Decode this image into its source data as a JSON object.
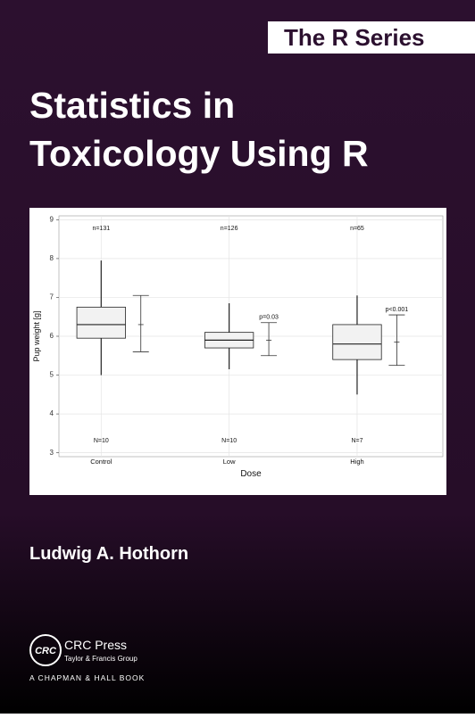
{
  "series_label": "The R Series",
  "title": [
    "Statistics in",
    "Toxicology Using R"
  ],
  "author": "Ludwig A. Hothorn",
  "publisher": {
    "logo": "CRC",
    "name": "CRC Press",
    "group": "Taylor & Francis Group",
    "imprint": "A CHAPMAN & HALL BOOK"
  },
  "chart_data": {
    "type": "box",
    "ylabel": "Pup weight [g]",
    "xlabel": "Dose",
    "categories": [
      "Control",
      "Low",
      "High"
    ],
    "ylim": [
      2.9,
      9.1
    ],
    "yticks": [
      3,
      4,
      5,
      6,
      7,
      8,
      9
    ],
    "grid": true,
    "box_color": "#f2f2f2",
    "boxes": [
      {
        "whisker_low": 5.0,
        "q1": 5.95,
        "median": 6.3,
        "q3": 6.75,
        "whisker_high": 7.95
      },
      {
        "whisker_low": 5.15,
        "q1": 5.7,
        "median": 5.9,
        "q3": 6.1,
        "whisker_high": 6.85
      },
      {
        "whisker_low": 4.5,
        "q1": 5.4,
        "median": 5.8,
        "q3": 6.3,
        "whisker_high": 7.05
      }
    ],
    "n_top": [
      "n=131",
      "n=126",
      "n=65"
    ],
    "n_bottom": [
      "N=10",
      "N=10",
      "N=7"
    ],
    "intervals": [
      {
        "low": 5.6,
        "mid": 6.3,
        "high": 7.05
      },
      {
        "low": 5.5,
        "mid": 5.9,
        "high": 6.35,
        "label": "p=0.03"
      },
      {
        "low": 5.25,
        "mid": 5.85,
        "high": 6.55,
        "label": "p<0.001"
      }
    ]
  }
}
